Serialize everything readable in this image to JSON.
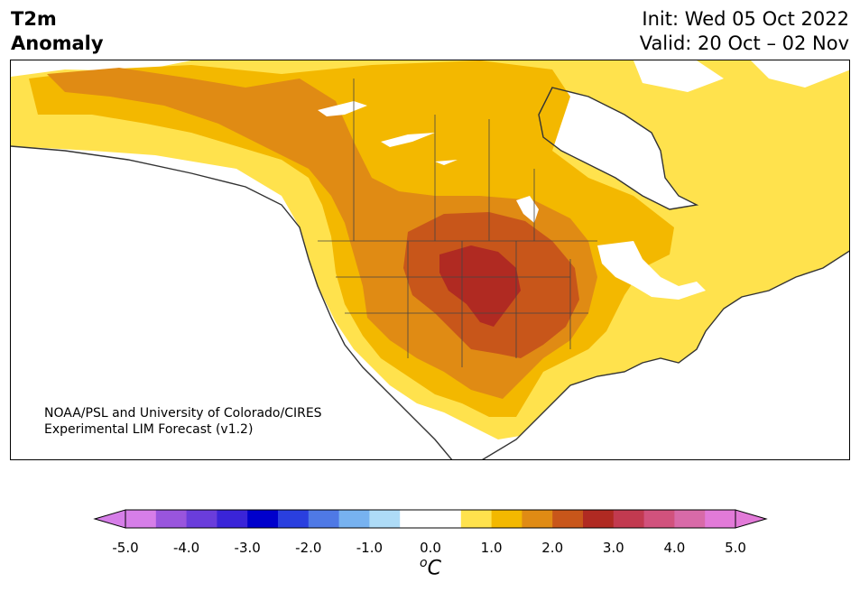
{
  "header": {
    "variable_line1": "T2m",
    "variable_line2": "Anomaly",
    "init_text": "Init: Wed 05 Oct 2022",
    "valid_text": "Valid: 20 Oct – 02 Nov"
  },
  "credit": {
    "line1": "NOAA/PSL and University of Colorado/CIRES",
    "line2": "Experimental LIM Forecast (v1.2)"
  },
  "colorbar": {
    "tick_labels": [
      "-5.0",
      "-4.0",
      "-3.0",
      "-2.0",
      "-1.0",
      "0.0",
      "1.0",
      "2.0",
      "3.0",
      "4.0",
      "5.0"
    ],
    "unit_symbol": "o",
    "unit_letter": "C",
    "colors": [
      "#d67ee8",
      "#9955dd",
      "#6a3ddb",
      "#3a24d8",
      "#0000cc",
      "#2a3fdf",
      "#4f79e5",
      "#77b2f0",
      "#aedcf7",
      "#ffffff",
      "#ffffff",
      "#ffe24d",
      "#f3b800",
      "#e08b14",
      "#c8561a",
      "#b02a22",
      "#c23a50",
      "#d1527d",
      "#d86aa8",
      "#e27ad8"
    ]
  },
  "map": {
    "region": "North America",
    "fill_levels": {
      "warm_1": "#ffe24d",
      "warm_2": "#f3b800",
      "warm_3": "#e08b14",
      "warm_4": "#c8561a",
      "warm_5": "#b02a22"
    }
  }
}
